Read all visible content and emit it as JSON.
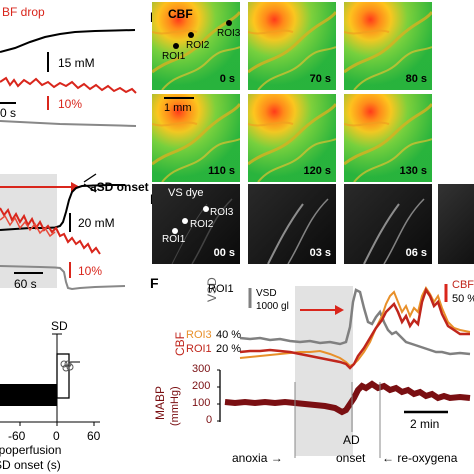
{
  "panel_left_top": {
    "cbf_drop_label": "BF drop",
    "scale_mm": "15 mM",
    "scale_pct": "10%",
    "time_fragment": "0 s"
  },
  "panel_left_mid": {
    "asd_onset_label": "aSD onset",
    "scale_mm": "20 mM",
    "scale_pct": "10%",
    "time_scale": "60 s"
  },
  "panel_left_bottom": {
    "sd_label": "SD",
    "tick_labels": [
      "-60",
      "0",
      "60"
    ],
    "xlabel_line1": "hypoperfusion",
    "xlabel_line2": "SD onset (s)"
  },
  "panel_d": {
    "letter": "D",
    "title": "CBF",
    "scale_label": "1 mm",
    "roi_labels": [
      "ROI3",
      "ROI2",
      "ROI1"
    ],
    "frames": [
      "0 s",
      "70 s",
      "80 s",
      "110 s",
      "120 s",
      "130 s"
    ]
  },
  "panel_e": {
    "letter": "E",
    "title": "VS dye",
    "roi_labels": [
      "ROI3",
      "ROI2",
      "ROI1"
    ],
    "frames": [
      "00 s",
      "03 s",
      "06 s"
    ]
  },
  "panel_f": {
    "letter": "F",
    "vsd_label": "VSD",
    "roi1_label": "ROI1",
    "vsd_scale_line1": "VSD",
    "vsd_scale_line2": "1000 gl",
    "cbf_label": "CBF",
    "cbf_scale": "50 %",
    "roi3_label": "ROI3",
    "roi3_pct": "40 %",
    "roi1_label_b": "ROI1",
    "roi1_pct": "20 %",
    "mabp_label": "MABP",
    "mabp_unit": "(mmHg)",
    "mabp_ticks": [
      "300",
      "200",
      "100",
      "0"
    ],
    "time_scale": "2 min",
    "anoxia_label": "anoxia →",
    "ad_line1": "AD",
    "ad_line2": "onset",
    "reox_label": "← re-oxygena",
    "colors": {
      "vsd": "#808080",
      "roi3": "#e8902a",
      "roi1": "#c0261c",
      "mabp": "#7a0f12"
    }
  }
}
